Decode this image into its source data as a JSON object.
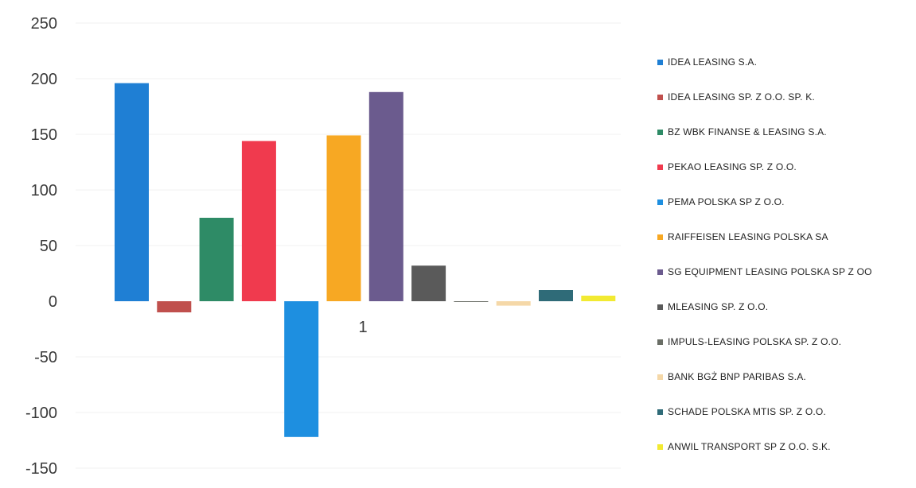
{
  "chart_data": {
    "type": "bar",
    "categories": [
      "1"
    ],
    "ylim": [
      -150,
      250
    ],
    "yticks": [
      250,
      200,
      150,
      100,
      50,
      0,
      -50,
      -100,
      -150
    ],
    "grid": true,
    "legend_position": "right",
    "series": [
      {
        "name": "IDEA LEASING S.A.",
        "value": 196,
        "color": "#1f7fd4"
      },
      {
        "name": "IDEA LEASING SP. Z O.O. SP. K.",
        "value": -10,
        "color": "#c0504d"
      },
      {
        "name": "BZ WBK FINANSE & LEASING S.A.",
        "value": 75,
        "color": "#2e8b66"
      },
      {
        "name": "PEKAO LEASING SP. Z O.O.",
        "value": 144,
        "color": "#f03a4e"
      },
      {
        "name": "PEMA POLSKA SP Z O.O.",
        "value": -122,
        "color": "#1e8fe0"
      },
      {
        "name": "RAIFFEISEN LEASING POLSKA SA",
        "value": 149,
        "color": "#f7a823"
      },
      {
        "name": "SG EQUIPMENT LEASING POLSKA SP Z OO",
        "value": 188,
        "color": "#6b5b8e"
      },
      {
        "name": "MLEASING SP. Z O.O.",
        "value": 32,
        "color": "#5a5a5a"
      },
      {
        "name": "IMPULS-LEASING POLSKA SP. Z O.O.",
        "value": 0,
        "color": "#6a6e66"
      },
      {
        "name": "BANK BGŻ BNP PARIBAS S.A.",
        "value": -4,
        "color": "#f5d8a8"
      },
      {
        "name": "SCHADE POLSKA MTIS SP. Z O.O.",
        "value": 10,
        "color": "#2f6b78"
      },
      {
        "name": "ANWIL TRANSPORT SP Z O.O. S.K.",
        "value": 5,
        "color": "#f2ea32"
      }
    ]
  }
}
